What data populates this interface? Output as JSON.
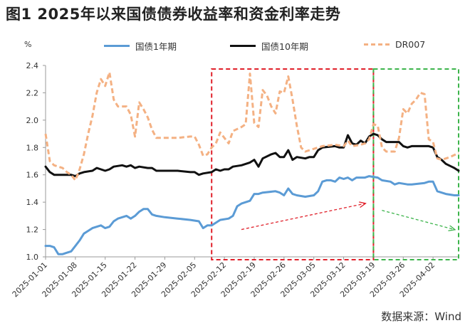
{
  "figure": {
    "title": "图1  2025年以来国债债券收益率和资金利率走势",
    "unit": "%",
    "source": "数据来源：Wind"
  },
  "colors": {
    "gov1y": "#5B9BD5",
    "gov10y": "#111111",
    "dr007": "#F4B183",
    "red_box": "#E0202A",
    "green_box": "#3CB44B"
  },
  "chart_data": {
    "type": "line",
    "title": "",
    "xlabel": "",
    "ylabel": "%",
    "ylim": [
      1.0,
      2.4
    ],
    "yticks": [
      "1.0",
      "1.2",
      "1.4",
      "1.6",
      "1.8",
      "2.0",
      "2.2",
      "2.4"
    ],
    "x_range": [
      "2025-01-01",
      "2025-04-08"
    ],
    "x_ticks": [
      "2025-01-01",
      "2025-01-08",
      "2025-01-15",
      "2025-01-22",
      "2025-01-29",
      "2025-02-05",
      "2025-02-12",
      "2025-02-19",
      "2025-02-26",
      "2025-03-05",
      "2025-03-12",
      "2025-03-19",
      "2025-03-26",
      "2025-04-02"
    ],
    "grid": false,
    "legend_position": "top",
    "series": [
      {
        "name": "国债1年期",
        "color": "#5B9BD5",
        "style": "solid",
        "points": [
          [
            "2025-01-01",
            1.08
          ],
          [
            "2025-01-02",
            1.08
          ],
          [
            "2025-01-03",
            1.07
          ],
          [
            "2025-01-04",
            1.02
          ],
          [
            "2025-01-05",
            1.02
          ],
          [
            "2025-01-06",
            1.03
          ],
          [
            "2025-01-07",
            1.04
          ],
          [
            "2025-01-08",
            1.08
          ],
          [
            "2025-01-09",
            1.12
          ],
          [
            "2025-01-10",
            1.17
          ],
          [
            "2025-01-11",
            1.19
          ],
          [
            "2025-01-12",
            1.21
          ],
          [
            "2025-01-13",
            1.22
          ],
          [
            "2025-01-14",
            1.23
          ],
          [
            "2025-01-15",
            1.21
          ],
          [
            "2025-01-16",
            1.22
          ],
          [
            "2025-01-17",
            1.26
          ],
          [
            "2025-01-18",
            1.28
          ],
          [
            "2025-01-19",
            1.29
          ],
          [
            "2025-01-20",
            1.3
          ],
          [
            "2025-01-21",
            1.28
          ],
          [
            "2025-01-22",
            1.3
          ],
          [
            "2025-01-23",
            1.33
          ],
          [
            "2025-01-24",
            1.35
          ],
          [
            "2025-01-25",
            1.35
          ],
          [
            "2025-01-26",
            1.31
          ],
          [
            "2025-01-27",
            1.3
          ],
          [
            "2025-01-29",
            1.29
          ],
          [
            "2025-02-01",
            1.28
          ],
          [
            "2025-02-04",
            1.27
          ],
          [
            "2025-02-06",
            1.26
          ],
          [
            "2025-02-07",
            1.21
          ],
          [
            "2025-02-08",
            1.23
          ],
          [
            "2025-02-09",
            1.23
          ],
          [
            "2025-02-10",
            1.25
          ],
          [
            "2025-02-11",
            1.27
          ],
          [
            "2025-02-13",
            1.28
          ],
          [
            "2025-02-14",
            1.3
          ],
          [
            "2025-02-15",
            1.37
          ],
          [
            "2025-02-16",
            1.39
          ],
          [
            "2025-02-18",
            1.41
          ],
          [
            "2025-02-19",
            1.46
          ],
          [
            "2025-02-20",
            1.46
          ],
          [
            "2025-02-21",
            1.47
          ],
          [
            "2025-02-24",
            1.48
          ],
          [
            "2025-02-25",
            1.47
          ],
          [
            "2025-02-26",
            1.45
          ],
          [
            "2025-02-27",
            1.5
          ],
          [
            "2025-02-28",
            1.46
          ],
          [
            "2025-03-01",
            1.45
          ],
          [
            "2025-03-03",
            1.44
          ],
          [
            "2025-03-05",
            1.45
          ],
          [
            "2025-03-06",
            1.48
          ],
          [
            "2025-03-07",
            1.55
          ],
          [
            "2025-03-08",
            1.56
          ],
          [
            "2025-03-09",
            1.56
          ],
          [
            "2025-03-10",
            1.55
          ],
          [
            "2025-03-11",
            1.58
          ],
          [
            "2025-03-12",
            1.57
          ],
          [
            "2025-03-13",
            1.58
          ],
          [
            "2025-03-14",
            1.56
          ],
          [
            "2025-03-15",
            1.58
          ],
          [
            "2025-03-17",
            1.58
          ],
          [
            "2025-03-18",
            1.59
          ],
          [
            "2025-03-20",
            1.58
          ],
          [
            "2025-03-21",
            1.56
          ],
          [
            "2025-03-23",
            1.55
          ],
          [
            "2025-03-24",
            1.53
          ],
          [
            "2025-03-25",
            1.54
          ],
          [
            "2025-03-27",
            1.53
          ],
          [
            "2025-03-28",
            1.53
          ],
          [
            "2025-03-31",
            1.54
          ],
          [
            "2025-04-01",
            1.55
          ],
          [
            "2025-04-02",
            1.55
          ],
          [
            "2025-04-03",
            1.48
          ],
          [
            "2025-04-04",
            1.47
          ],
          [
            "2025-04-05",
            1.46
          ],
          [
            "2025-04-07",
            1.45
          ],
          [
            "2025-04-08",
            1.45
          ]
        ]
      },
      {
        "name": "国债10年期",
        "color": "#111111",
        "style": "solid",
        "points": [
          [
            "2025-01-01",
            1.66
          ],
          [
            "2025-01-02",
            1.62
          ],
          [
            "2025-01-03",
            1.6
          ],
          [
            "2025-01-05",
            1.6
          ],
          [
            "2025-01-07",
            1.6
          ],
          [
            "2025-01-08",
            1.59
          ],
          [
            "2025-01-09",
            1.61
          ],
          [
            "2025-01-10",
            1.62
          ],
          [
            "2025-01-12",
            1.63
          ],
          [
            "2025-01-13",
            1.65
          ],
          [
            "2025-01-14",
            1.64
          ],
          [
            "2025-01-15",
            1.63
          ],
          [
            "2025-01-16",
            1.64
          ],
          [
            "2025-01-17",
            1.66
          ],
          [
            "2025-01-19",
            1.67
          ],
          [
            "2025-01-20",
            1.66
          ],
          [
            "2025-01-21",
            1.67
          ],
          [
            "2025-01-22",
            1.65
          ],
          [
            "2025-01-23",
            1.66
          ],
          [
            "2025-01-25",
            1.65
          ],
          [
            "2025-01-26",
            1.65
          ],
          [
            "2025-01-27",
            1.63
          ],
          [
            "2025-01-29",
            1.63
          ],
          [
            "2025-02-01",
            1.63
          ],
          [
            "2025-02-04",
            1.62
          ],
          [
            "2025-02-05",
            1.62
          ],
          [
            "2025-02-06",
            1.6
          ],
          [
            "2025-02-07",
            1.61
          ],
          [
            "2025-02-09",
            1.62
          ],
          [
            "2025-02-10",
            1.64
          ],
          [
            "2025-02-11",
            1.63
          ],
          [
            "2025-02-12",
            1.64
          ],
          [
            "2025-02-13",
            1.64
          ],
          [
            "2025-02-14",
            1.66
          ],
          [
            "2025-02-16",
            1.67
          ],
          [
            "2025-02-18",
            1.69
          ],
          [
            "2025-02-19",
            1.71
          ],
          [
            "2025-02-20",
            1.66
          ],
          [
            "2025-02-21",
            1.72
          ],
          [
            "2025-02-23",
            1.75
          ],
          [
            "2025-02-24",
            1.76
          ],
          [
            "2025-02-25",
            1.73
          ],
          [
            "2025-02-26",
            1.73
          ],
          [
            "2025-02-27",
            1.78
          ],
          [
            "2025-02-28",
            1.71
          ],
          [
            "2025-03-01",
            1.73
          ],
          [
            "2025-03-03",
            1.72
          ],
          [
            "2025-03-04",
            1.73
          ],
          [
            "2025-03-05",
            1.73
          ],
          [
            "2025-03-06",
            1.78
          ],
          [
            "2025-03-07",
            1.8
          ],
          [
            "2025-03-10",
            1.81
          ],
          [
            "2025-03-11",
            1.8
          ],
          [
            "2025-03-12",
            1.8
          ],
          [
            "2025-03-13",
            1.89
          ],
          [
            "2025-03-14",
            1.83
          ],
          [
            "2025-03-15",
            1.82
          ],
          [
            "2025-03-16",
            1.85
          ],
          [
            "2025-03-17",
            1.83
          ],
          [
            "2025-03-18",
            1.88
          ],
          [
            "2025-03-19",
            1.9
          ],
          [
            "2025-03-20",
            1.89
          ],
          [
            "2025-03-21",
            1.86
          ],
          [
            "2025-03-22",
            1.84
          ],
          [
            "2025-03-24",
            1.84
          ],
          [
            "2025-03-25",
            1.84
          ],
          [
            "2025-03-26",
            1.81
          ],
          [
            "2025-03-27",
            1.8
          ],
          [
            "2025-03-28",
            1.81
          ],
          [
            "2025-03-31",
            1.81
          ],
          [
            "2025-04-01",
            1.81
          ],
          [
            "2025-04-02",
            1.8
          ],
          [
            "2025-04-03",
            1.73
          ],
          [
            "2025-04-04",
            1.71
          ],
          [
            "2025-04-05",
            1.68
          ],
          [
            "2025-04-07",
            1.65
          ],
          [
            "2025-04-08",
            1.63
          ]
        ]
      },
      {
        "name": "DR007",
        "color": "#F4B183",
        "style": "dashed",
        "points": [
          [
            "2025-01-01",
            1.9
          ],
          [
            "2025-01-02",
            1.7
          ],
          [
            "2025-01-03",
            1.67
          ],
          [
            "2025-01-04",
            1.66
          ],
          [
            "2025-01-05",
            1.65
          ],
          [
            "2025-01-06",
            1.62
          ],
          [
            "2025-01-07",
            1.6
          ],
          [
            "2025-01-08",
            1.56
          ],
          [
            "2025-01-09",
            1.64
          ],
          [
            "2025-01-10",
            1.75
          ],
          [
            "2025-01-11",
            1.9
          ],
          [
            "2025-01-12",
            2.03
          ],
          [
            "2025-01-13",
            2.2
          ],
          [
            "2025-01-14",
            2.3
          ],
          [
            "2025-01-15",
            2.25
          ],
          [
            "2025-01-16",
            2.35
          ],
          [
            "2025-01-17",
            2.15
          ],
          [
            "2025-01-18",
            2.1
          ],
          [
            "2025-01-19",
            2.1
          ],
          [
            "2025-01-20",
            2.1
          ],
          [
            "2025-01-21",
            2.04
          ],
          [
            "2025-01-22",
            1.88
          ],
          [
            "2025-01-23",
            2.13
          ],
          [
            "2025-01-24",
            2.08
          ],
          [
            "2025-01-25",
            2.02
          ],
          [
            "2025-01-26",
            1.93
          ],
          [
            "2025-01-27",
            1.87
          ],
          [
            "2025-01-29",
            1.87
          ],
          [
            "2025-02-01",
            1.87
          ],
          [
            "2025-02-04",
            1.88
          ],
          [
            "2025-02-05",
            1.88
          ],
          [
            "2025-02-06",
            1.82
          ],
          [
            "2025-02-07",
            1.74
          ],
          [
            "2025-02-08",
            1.75
          ],
          [
            "2025-02-09",
            1.8
          ],
          [
            "2025-02-10",
            1.83
          ],
          [
            "2025-02-11",
            1.91
          ],
          [
            "2025-02-12",
            1.87
          ],
          [
            "2025-02-13",
            1.83
          ],
          [
            "2025-02-14",
            1.92
          ],
          [
            "2025-02-16",
            1.95
          ],
          [
            "2025-02-17",
            1.97
          ],
          [
            "2025-02-18",
            2.34
          ],
          [
            "2025-02-19",
            1.98
          ],
          [
            "2025-02-20",
            1.95
          ],
          [
            "2025-02-21",
            2.22
          ],
          [
            "2025-02-22",
            2.18
          ],
          [
            "2025-02-23",
            2.1
          ],
          [
            "2025-02-24",
            2.05
          ],
          [
            "2025-02-25",
            2.21
          ],
          [
            "2025-02-26",
            2.2
          ],
          [
            "2025-02-27",
            2.32
          ],
          [
            "2025-02-28",
            2.15
          ],
          [
            "2025-03-01",
            1.96
          ],
          [
            "2025-03-02",
            1.8
          ],
          [
            "2025-03-03",
            1.77
          ],
          [
            "2025-03-05",
            1.79
          ],
          [
            "2025-03-07",
            1.81
          ],
          [
            "2025-03-10",
            1.82
          ],
          [
            "2025-03-12",
            1.81
          ],
          [
            "2025-03-13",
            1.85
          ],
          [
            "2025-03-14",
            1.81
          ],
          [
            "2025-03-16",
            1.82
          ],
          [
            "2025-03-17",
            1.83
          ],
          [
            "2025-03-18",
            1.86
          ],
          [
            "2025-03-19",
            1.97
          ],
          [
            "2025-03-20",
            1.96
          ],
          [
            "2025-03-21",
            1.8
          ],
          [
            "2025-03-22",
            1.77
          ],
          [
            "2025-03-24",
            1.77
          ],
          [
            "2025-03-25",
            1.87
          ],
          [
            "2025-03-26",
            2.08
          ],
          [
            "2025-03-27",
            2.05
          ],
          [
            "2025-03-28",
            2.12
          ],
          [
            "2025-03-29",
            2.15
          ],
          [
            "2025-03-30",
            2.2
          ],
          [
            "2025-03-31",
            2.19
          ],
          [
            "2025-04-01",
            1.86
          ],
          [
            "2025-04-02",
            1.84
          ],
          [
            "2025-04-03",
            1.72
          ],
          [
            "2025-04-04",
            1.71
          ],
          [
            "2025-04-05",
            1.72
          ],
          [
            "2025-04-06",
            1.73
          ],
          [
            "2025-04-08",
            1.76
          ]
        ]
      }
    ],
    "annotations": [
      {
        "type": "box",
        "color": "#E0202A",
        "style": "dashed",
        "x_from": "2025-02-09",
        "x_to": "2025-03-19",
        "y_from": 1.0,
        "y_to": 2.4
      },
      {
        "type": "box",
        "color": "#3CB44B",
        "style": "dashed",
        "x_from": "2025-03-19",
        "x_to": "2025-04-08",
        "y_from": 1.0,
        "y_to": 2.4
      },
      {
        "type": "arrow",
        "color": "#E0202A",
        "style": "dashed",
        "from": [
          "2025-02-16",
          1.2
        ],
        "to": [
          "2025-03-17",
          1.39
        ]
      },
      {
        "type": "arrow",
        "color": "#3CB44B",
        "style": "dashed",
        "from": [
          "2025-03-21",
          1.34
        ],
        "to": [
          "2025-04-07",
          1.2
        ]
      }
    ]
  }
}
